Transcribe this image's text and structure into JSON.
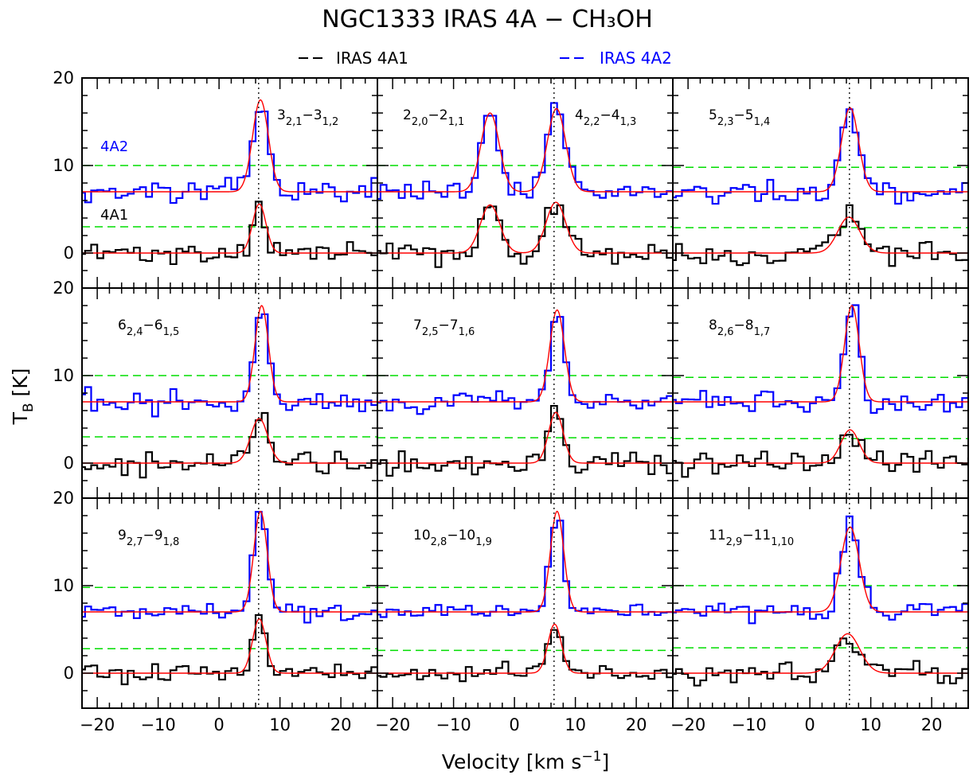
{
  "title": "NGC1333 IRAS 4A − CH₃OH",
  "legend": [
    {
      "label": "IRAS 4A1",
      "color": "#000000"
    },
    {
      "label": "IRAS 4A2",
      "color": "#0000ff"
    }
  ],
  "labels": {
    "label_4a2": "4A2",
    "label_4a1": "4A1"
  },
  "chart_data": {
    "type": "line",
    "layout": "3x3 grid of spectra panels, shared axes",
    "xlabel_main": "Velocity [km s",
    "xlabel_sup": "−1",
    "xlabel_end": "]",
    "ylabel_main": "T",
    "ylabel_sub": "B",
    "ylabel_end": " [K]",
    "xlim": [
      -22.5,
      26
    ],
    "ylim": [
      -4,
      20
    ],
    "xticks": [
      -20,
      -10,
      0,
      10,
      20
    ],
    "yticks": [
      0,
      10,
      20
    ],
    "vsys": 6.5,
    "offsets": {
      "IRAS 4A1": 0,
      "IRAS 4A2": 7
    },
    "colors": {
      "IRAS 4A1": "#000000",
      "IRAS 4A2": "#0000ff",
      "fit": "#ff0000",
      "threshold": "#00dd00"
    },
    "panels": [
      {
        "transitions": [
          {
            "main": "3",
            "sub1": "2,1",
            "dash": "3",
            "sub2": "1,2",
            "pos": "right"
          }
        ],
        "4A2": {
          "base": 7,
          "sigma": 0.9,
          "peaks": [
            {
              "v": 6.8,
              "amp": 10.5,
              "w": 1.3
            }
          ],
          "thresh": 10.0
        },
        "4A1": {
          "base": 0,
          "sigma": 0.9,
          "peaks": [
            {
              "v": 6.6,
              "amp": 5.6,
              "w": 1.1
            }
          ],
          "thresh": 3.0
        }
      },
      {
        "transitions": [
          {
            "main": "2",
            "sub1": "2,0",
            "dash": "2",
            "sub2": "1,1",
            "pos": "left"
          },
          {
            "main": "4",
            "sub1": "2,2",
            "dash": "4",
            "sub2": "1,3",
            "pos": "right"
          }
        ],
        "4A2": {
          "base": 7,
          "sigma": 0.7,
          "peaks": [
            {
              "v": -4.0,
              "amp": 9.0,
              "w": 1.5
            },
            {
              "v": 6.9,
              "amp": 9.5,
              "w": 1.5
            }
          ],
          "thresh": 10.0
        },
        "4A1": {
          "base": 0,
          "sigma": 1.0,
          "peaks": [
            {
              "v": -4.0,
              "amp": 5.5,
              "w": 1.6
            },
            {
              "v": 6.8,
              "amp": 5.8,
              "w": 1.6
            }
          ],
          "thresh": 3.0
        }
      },
      {
        "transitions": [
          {
            "main": "5",
            "sub1": "2,3",
            "dash": "5",
            "sub2": "1,4",
            "pos": "center"
          }
        ],
        "4A2": {
          "base": 7,
          "sigma": 0.8,
          "peaks": [
            {
              "v": 6.6,
              "amp": 9.6,
              "w": 1.4
            }
          ],
          "thresh": 9.8
        },
        "4A1": {
          "base": 0,
          "sigma": 1.0,
          "peaks": [
            {
              "v": 6.4,
              "amp": 4.1,
              "w": 1.8
            }
          ],
          "thresh": 2.9
        }
      },
      {
        "transitions": [
          {
            "main": "6",
            "sub1": "2,4",
            "dash": "6",
            "sub2": "1,5",
            "pos": "center"
          }
        ],
        "4A2": {
          "base": 7,
          "sigma": 0.9,
          "peaks": [
            {
              "v": 7.0,
              "amp": 11.0,
              "w": 1.1
            }
          ],
          "thresh": 10.0
        },
        "4A1": {
          "base": 0,
          "sigma": 1.0,
          "peaks": [
            {
              "v": 6.6,
              "amp": 5.1,
              "w": 1.4
            }
          ],
          "thresh": 3.0
        }
      },
      {
        "transitions": [
          {
            "main": "7",
            "sub1": "2,5",
            "dash": "7",
            "sub2": "1,6",
            "pos": "center"
          }
        ],
        "4A2": {
          "base": 7,
          "sigma": 0.9,
          "peaks": [
            {
              "v": 7.0,
              "amp": 10.5,
              "w": 1.2
            }
          ],
          "thresh": 10.0
        },
        "4A1": {
          "base": 0,
          "sigma": 0.9,
          "peaks": [
            {
              "v": 6.8,
              "amp": 5.8,
              "w": 1.2
            }
          ],
          "thresh": 2.9
        }
      },
      {
        "transitions": [
          {
            "main": "8",
            "sub1": "2,6",
            "dash": "8",
            "sub2": "1,7",
            "pos": "center"
          }
        ],
        "4A2": {
          "base": 7,
          "sigma": 0.9,
          "peaks": [
            {
              "v": 6.9,
              "amp": 11.0,
              "w": 1.2
            }
          ],
          "thresh": 9.8
        },
        "4A1": {
          "base": 0,
          "sigma": 1.0,
          "peaks": [
            {
              "v": 6.6,
              "amp": 3.8,
              "w": 1.5
            }
          ],
          "thresh": 2.8
        }
      },
      {
        "transitions": [
          {
            "main": "9",
            "sub1": "2,7",
            "dash": "9",
            "sub2": "1,8",
            "pos": "center"
          }
        ],
        "4A2": {
          "base": 7,
          "sigma": 0.7,
          "peaks": [
            {
              "v": 6.8,
              "amp": 11.5,
              "w": 1.1
            }
          ],
          "thresh": 9.8
        },
        "4A1": {
          "base": 0,
          "sigma": 0.7,
          "peaks": [
            {
              "v": 6.6,
              "amp": 6.2,
              "w": 1.1
            }
          ],
          "thresh": 2.8
        }
      },
      {
        "transitions": [
          {
            "main": "10",
            "sub1": "2,8",
            "dash": "10",
            "sub2": "1,9",
            "pos": "center"
          }
        ],
        "4A2": {
          "base": 7,
          "sigma": 0.7,
          "peaks": [
            {
              "v": 7.0,
              "amp": 11.5,
              "w": 1.1
            }
          ],
          "thresh": 9.8
        },
        "4A1": {
          "base": 0,
          "sigma": 0.7,
          "peaks": [
            {
              "v": 6.6,
              "amp": 5.6,
              "w": 1.1
            }
          ],
          "thresh": 2.6
        }
      },
      {
        "transitions": [
          {
            "main": "11",
            "sub1": "2,9",
            "dash": "11",
            "sub2": "1,10",
            "pos": "center"
          }
        ],
        "4A2": {
          "base": 7,
          "sigma": 0.8,
          "peaks": [
            {
              "v": 6.6,
              "amp": 9.7,
              "w": 1.5
            }
          ],
          "thresh": 10.0
        },
        "4A1": {
          "base": 0,
          "sigma": 1.0,
          "peaks": [
            {
              "v": 6.2,
              "amp": 4.5,
              "w": 2.0
            }
          ],
          "thresh": 2.9
        }
      }
    ]
  }
}
